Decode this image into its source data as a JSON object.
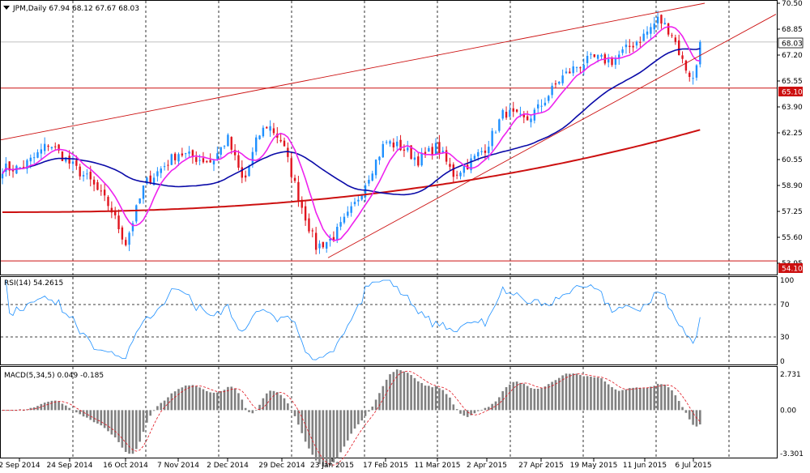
{
  "main_panel": {
    "title": "JPM,Daily  67.94 68.12 67.67 68.03",
    "y_ticks": [
      "70.50",
      "68.85",
      "67.20",
      "65.55",
      "63.90",
      "62.25",
      "60.55",
      "58.90",
      "57.25",
      "55.60",
      "53.95"
    ],
    "current_price": "68.03",
    "hline_labels": [
      "65.10",
      "54.10"
    ],
    "colors": {
      "bull": "#1e90ff",
      "bear": "#e0141e",
      "ma_fast": "#ee22ee",
      "ma_mid": "#0a0aa8",
      "ma_slow": "#cc1010",
      "trendline": "#cc1010"
    }
  },
  "rsi_panel": {
    "title": "RSI(14) 54.2615",
    "y_ticks": [
      "100",
      "70",
      "30",
      "0"
    ]
  },
  "macd_panel": {
    "title": "MACD(5,34,5) 0.049 -0.185",
    "y_ticks": [
      "2.731",
      "0.00",
      "-3.301"
    ]
  },
  "x_axis": {
    "date_labels": [
      "2 Sep 2014",
      "24 Sep 2014",
      "16 Oct 2014",
      "7 Nov 2014",
      "2 Dec 2014",
      "29 Dec 2014",
      "23 Jan 2015",
      "17 Feb 2015",
      "11 Mar 2015",
      "2 Apr 2015",
      "27 Apr 2015",
      "19 May 2015",
      "11 Jun 2015",
      "6 Jul 2015"
    ]
  },
  "chart_data": {
    "type": "candlestick",
    "symbol": "JPM",
    "timeframe": "Daily",
    "ohlc_last": {
      "open": 67.94,
      "high": 68.12,
      "low": 67.67,
      "close": 68.03
    },
    "ylim": [
      53.95,
      70.5
    ],
    "horizontal_lines": [
      65.1,
      54.1
    ],
    "close_path": [
      {
        "x": "2 Sep 2014",
        "y": 60.0
      },
      {
        "x": "8 Sep 2014",
        "y": 60.6
      },
      {
        "x": "15 Sep 2014",
        "y": 61.6
      },
      {
        "x": "24 Sep 2014",
        "y": 60.3
      },
      {
        "x": "2 Oct 2014",
        "y": 59.2
      },
      {
        "x": "10 Oct 2014",
        "y": 57.5
      },
      {
        "x": "16 Oct 2014",
        "y": 55.2
      },
      {
        "x": "24 Oct 2014",
        "y": 59.0
      },
      {
        "x": "7 Nov 2014",
        "y": 61.0
      },
      {
        "x": "14 Nov 2014",
        "y": 60.7
      },
      {
        "x": "24 Nov 2014",
        "y": 60.4
      },
      {
        "x": "2 Dec 2014",
        "y": 61.9
      },
      {
        "x": "10 Dec 2014",
        "y": 59.0
      },
      {
        "x": "17 Dec 2014",
        "y": 62.0
      },
      {
        "x": "22 Dec 2014",
        "y": 62.8
      },
      {
        "x": "29 Dec 2014",
        "y": 61.7
      },
      {
        "x": "7 Jan 2015",
        "y": 57.9
      },
      {
        "x": "15 Jan 2015",
        "y": 55.0
      },
      {
        "x": "23 Jan 2015",
        "y": 55.5
      },
      {
        "x": "2 Feb 2015",
        "y": 57.5
      },
      {
        "x": "9 Feb 2015",
        "y": 59.5
      },
      {
        "x": "17 Feb 2015",
        "y": 61.7
      },
      {
        "x": "24 Feb 2015",
        "y": 61.3
      },
      {
        "x": "3 Mar 2015",
        "y": 60.5
      },
      {
        "x": "11 Mar 2015",
        "y": 61.4
      },
      {
        "x": "18 Mar 2015",
        "y": 59.6
      },
      {
        "x": "25 Mar 2015",
        "y": 60.3
      },
      {
        "x": "2 Apr 2015",
        "y": 61.4
      },
      {
        "x": "10 Apr 2015",
        "y": 63.6
      },
      {
        "x": "20 Apr 2015",
        "y": 63.0
      },
      {
        "x": "27 Apr 2015",
        "y": 64.0
      },
      {
        "x": "5 May 2015",
        "y": 65.7
      },
      {
        "x": "12 May 2015",
        "y": 66.5
      },
      {
        "x": "19 May 2015",
        "y": 67.0
      },
      {
        "x": "27 May 2015",
        "y": 66.8
      },
      {
        "x": "3 Jun 2015",
        "y": 67.6
      },
      {
        "x": "11 Jun 2015",
        "y": 68.5
      },
      {
        "x": "18 Jun 2015",
        "y": 69.5
      },
      {
        "x": "25 Jun 2015",
        "y": 68.6
      },
      {
        "x": "1 Jul 2015",
        "y": 66.6
      },
      {
        "x": "6 Jul 2015",
        "y": 65.6
      },
      {
        "x": "10 Jul 2015",
        "y": 68.03
      }
    ]
  }
}
